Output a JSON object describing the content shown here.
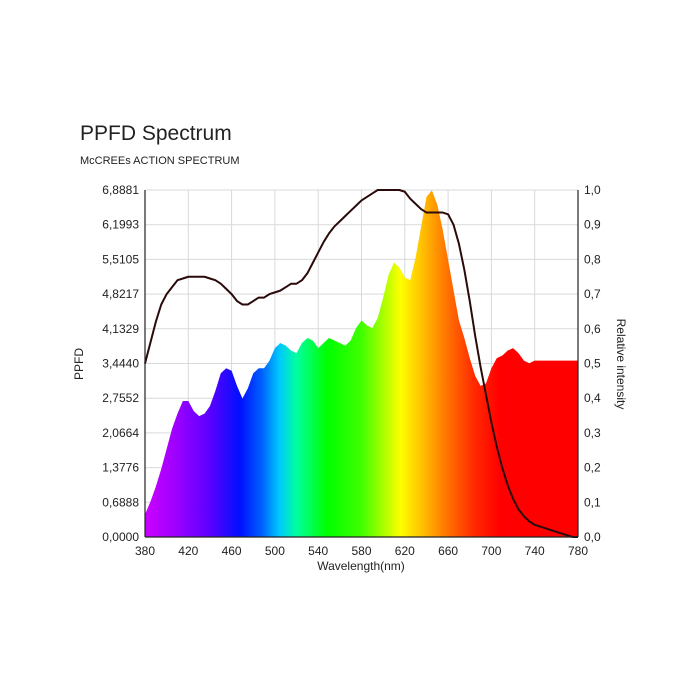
{
  "chart_data": {
    "type": "area",
    "title": "PPFD Spectrum",
    "subtitle": "McCREEs ACTION SPECTRUM",
    "xlabel": "Wavelength(nm)",
    "ylabel": "PPFD",
    "y2label": "Relative intensity",
    "xlim": [
      380,
      780
    ],
    "ylim": [
      0,
      6.8881
    ],
    "y2lim": [
      0,
      1.0
    ],
    "x_ticks": [
      "380",
      "420",
      "460",
      "500",
      "540",
      "580",
      "620",
      "660",
      "700",
      "740",
      "780"
    ],
    "y_ticks": [
      "0,0000",
      "0,6888",
      "1,3776",
      "2,0664",
      "2,7552",
      "3,4440",
      "4,1329",
      "4,8217",
      "5,5105",
      "6,1993",
      "6,8881"
    ],
    "y2_ticks": [
      "0,0",
      "0,1",
      "0,2",
      "0,3",
      "0,4",
      "0,5",
      "0,6",
      "0,7",
      "0,8",
      "0,9",
      "1,0"
    ],
    "grid": true,
    "series": [
      {
        "kind": "spectrum-fill",
        "axis": "left",
        "x": [
          380,
          385,
          390,
          395,
          400,
          405,
          410,
          415,
          420,
          425,
          430,
          435,
          440,
          445,
          450,
          455,
          460,
          465,
          470,
          475,
          480,
          485,
          490,
          495,
          500,
          505,
          510,
          515,
          520,
          525,
          530,
          535,
          540,
          545,
          550,
          555,
          560,
          565,
          570,
          575,
          580,
          585,
          590,
          595,
          600,
          605,
          610,
          615,
          620,
          625,
          630,
          635,
          640,
          645,
          650,
          655,
          660,
          665,
          670,
          675,
          680,
          685,
          690,
          695,
          700,
          705,
          710,
          715,
          720,
          725,
          730,
          735,
          740,
          745,
          750,
          755,
          760,
          765,
          770,
          775,
          780
        ],
        "values": [
          0.45,
          0.7,
          1.0,
          1.35,
          1.75,
          2.15,
          2.45,
          2.7,
          2.7,
          2.5,
          2.4,
          2.45,
          2.6,
          2.9,
          3.25,
          3.35,
          3.3,
          3.0,
          2.75,
          2.95,
          3.25,
          3.35,
          3.35,
          3.5,
          3.75,
          3.85,
          3.8,
          3.7,
          3.65,
          3.85,
          3.95,
          3.9,
          3.75,
          3.85,
          3.95,
          3.9,
          3.85,
          3.8,
          3.9,
          4.15,
          4.3,
          4.2,
          4.15,
          4.35,
          4.75,
          5.2,
          5.45,
          5.35,
          5.15,
          5.1,
          5.55,
          6.15,
          6.75,
          6.88,
          6.6,
          6.1,
          5.5,
          4.9,
          4.3,
          3.95,
          3.55,
          3.2,
          3.0,
          3.05,
          3.35,
          3.55,
          3.6,
          3.7,
          3.75,
          3.65,
          3.5,
          3.45,
          3.5,
          3.5,
          3.5,
          3.5,
          3.5,
          3.5,
          3.5,
          3.5,
          3.5
        ]
      },
      {
        "kind": "line",
        "axis": "right",
        "x": [
          380,
          385,
          390,
          395,
          400,
          405,
          410,
          415,
          420,
          425,
          430,
          435,
          440,
          445,
          450,
          455,
          460,
          465,
          470,
          475,
          480,
          485,
          490,
          495,
          500,
          505,
          510,
          515,
          520,
          525,
          530,
          535,
          540,
          545,
          550,
          555,
          560,
          565,
          570,
          575,
          580,
          585,
          590,
          595,
          600,
          605,
          610,
          615,
          620,
          625,
          630,
          635,
          640,
          645,
          650,
          655,
          660,
          665,
          670,
          675,
          680,
          685,
          690,
          695,
          700,
          705,
          710,
          715,
          720,
          725,
          730,
          735,
          740,
          745,
          750,
          755,
          760,
          765,
          770,
          775,
          780
        ],
        "values": [
          0.5,
          0.56,
          0.62,
          0.67,
          0.7,
          0.72,
          0.74,
          0.745,
          0.75,
          0.75,
          0.75,
          0.75,
          0.745,
          0.74,
          0.73,
          0.715,
          0.7,
          0.68,
          0.67,
          0.67,
          0.68,
          0.69,
          0.69,
          0.7,
          0.705,
          0.71,
          0.72,
          0.73,
          0.73,
          0.74,
          0.76,
          0.79,
          0.82,
          0.85,
          0.875,
          0.895,
          0.91,
          0.925,
          0.94,
          0.955,
          0.97,
          0.98,
          0.99,
          1.0,
          1.0,
          1.0,
          1.0,
          1.0,
          0.995,
          0.975,
          0.96,
          0.945,
          0.935,
          0.935,
          0.935,
          0.935,
          0.93,
          0.9,
          0.845,
          0.77,
          0.68,
          0.58,
          0.49,
          0.41,
          0.33,
          0.26,
          0.2,
          0.15,
          0.11,
          0.08,
          0.06,
          0.045,
          0.035,
          0.03,
          0.025,
          0.02,
          0.015,
          0.01,
          0.005,
          0.0,
          0.0
        ]
      }
    ]
  }
}
